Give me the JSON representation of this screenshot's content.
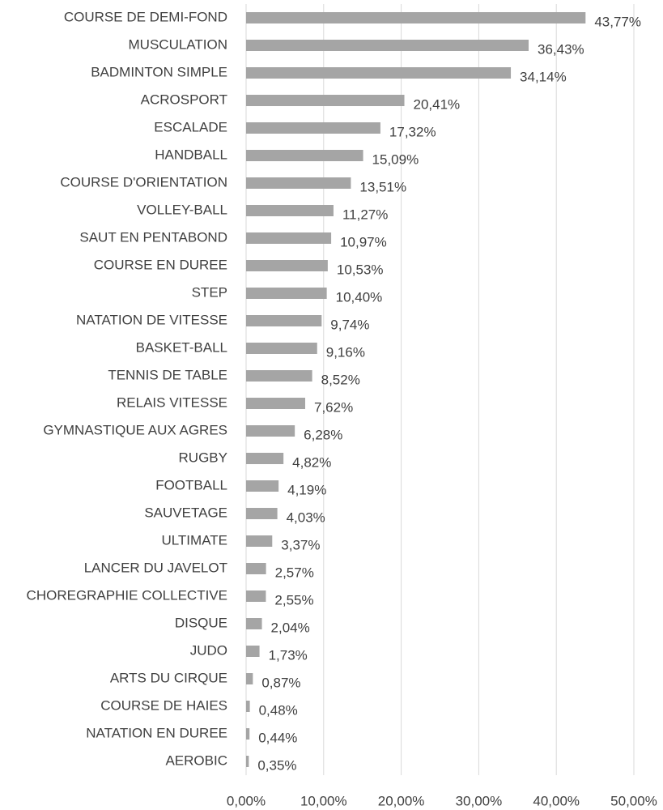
{
  "chart_data": {
    "type": "bar",
    "orientation": "horizontal",
    "categories": [
      "COURSE DE DEMI-FOND",
      "MUSCULATION",
      "BADMINTON SIMPLE",
      "ACROSPORT",
      "ESCALADE",
      "HANDBALL",
      "COURSE D'ORIENTATION",
      "VOLLEY-BALL",
      "SAUT EN PENTABOND",
      "COURSE EN DUREE",
      "STEP",
      "NATATION DE VITESSE",
      "BASKET-BALL",
      "TENNIS DE TABLE",
      "RELAIS VITESSE",
      "GYMNASTIQUE AUX AGRES",
      "RUGBY",
      "FOOTBALL",
      "SAUVETAGE",
      "ULTIMATE",
      "LANCER DU JAVELOT",
      "CHOREGRAPHIE COLLECTIVE",
      "DISQUE",
      "JUDO",
      "ARTS DU CIRQUE",
      "COURSE DE HAIES",
      "NATATION EN DUREE",
      "AEROBIC"
    ],
    "values": [
      43.77,
      36.43,
      34.14,
      20.41,
      17.32,
      15.09,
      13.51,
      11.27,
      10.97,
      10.53,
      10.4,
      9.74,
      9.16,
      8.52,
      7.62,
      6.28,
      4.82,
      4.19,
      4.03,
      3.37,
      2.57,
      2.55,
      2.04,
      1.73,
      0.87,
      0.48,
      0.44,
      0.35
    ],
    "value_labels": [
      "43,77%",
      "36,43%",
      "34,14%",
      "20,41%",
      "17,32%",
      "15,09%",
      "13,51%",
      "11,27%",
      "10,97%",
      "10,53%",
      "10,40%",
      "9,74%",
      "9,16%",
      "8,52%",
      "7,62%",
      "6,28%",
      "4,82%",
      "4,19%",
      "4,03%",
      "3,37%",
      "2,57%",
      "2,55%",
      "2,04%",
      "1,73%",
      "0,87%",
      "0,48%",
      "0,44%",
      "0,35%"
    ],
    "color": "#a5a5a5",
    "xlim": [
      0,
      50
    ],
    "xticks": [
      {
        "value": 0,
        "label": "0,00%"
      },
      {
        "value": 10,
        "label": "10,00%"
      },
      {
        "value": 20,
        "label": "20,00%"
      },
      {
        "value": 30,
        "label": "30,00%"
      },
      {
        "value": 40,
        "label": "40,00%"
      },
      {
        "value": 50,
        "label": "50,00%"
      }
    ],
    "grid": true
  }
}
